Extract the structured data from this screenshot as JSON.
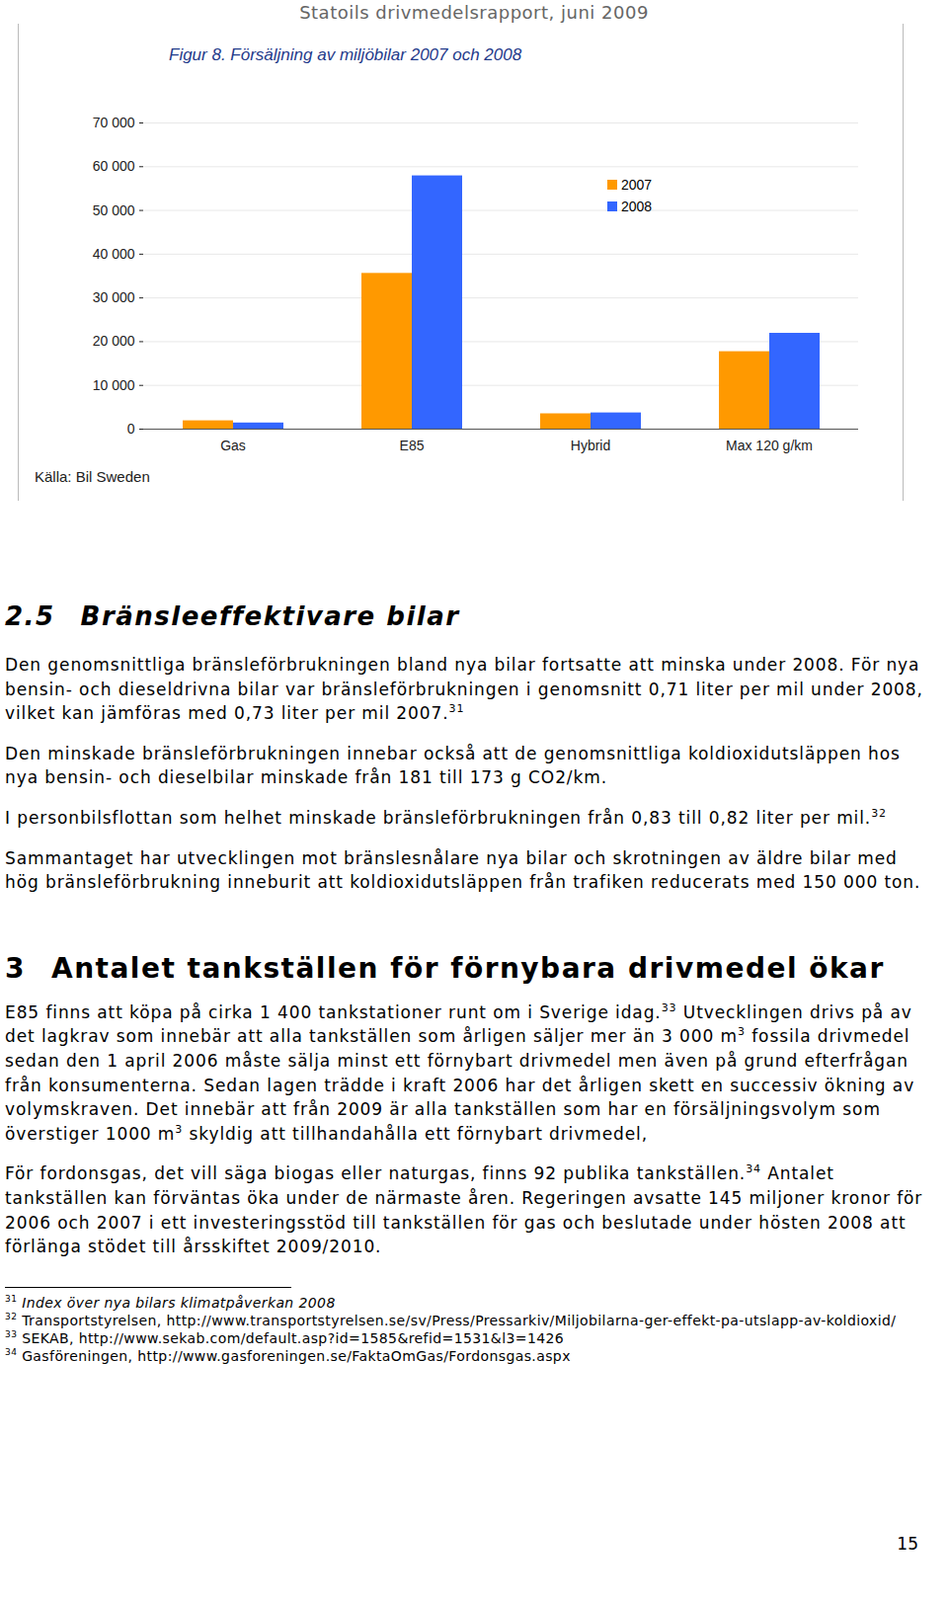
{
  "header": "Statoils drivmedelsrapport, juni 2009",
  "chart_data": {
    "type": "bar",
    "title": "Figur 8. Försäljning av miljöbilar 2007 och 2008",
    "source": "Källa: Bil Sweden",
    "categories": [
      "Gas",
      "E85",
      "Hybrid",
      "Max 120 g/km"
    ],
    "series": [
      {
        "name": "2007",
        "color": "#ff9900",
        "values": [
          1900,
          35600,
          3500,
          17700
        ]
      },
      {
        "name": "2008",
        "color": "#3366ff",
        "values": [
          1400,
          57900,
          3700,
          21900
        ]
      }
    ],
    "ylim": [
      0,
      70000
    ],
    "yticks": [
      0,
      {
        "value": 10000,
        "label": "10 000"
      },
      {
        "value": 20000,
        "label": "20 000"
      },
      {
        "value": 30000,
        "label": "30 000"
      },
      {
        "value": 40000,
        "label": "40 000"
      },
      {
        "value": 50000,
        "label": "50 000"
      },
      {
        "value": 60000,
        "label": "60 000"
      },
      {
        "value": 70000,
        "label": "70 000"
      }
    ],
    "grid": true,
    "legend": "top-right"
  },
  "sections": [
    {
      "number": "2.5",
      "title": "Bränsleeffektivare bilar",
      "paragraphs": [
        [
          "Den genomsnittliga bränsleförbrukningen bland nya bilar fortsatte att minska under 2008. För nya bensin- och dieseldrivna bilar var bränsleförbrukningen i genomsnitt 0,71 liter per mil under 2008, vilket kan jämföras med 0,73 liter per mil 2007.",
          {
            "sup": "31"
          }
        ],
        [
          "Den minskade bränsleförbrukningen innebar också att de genomsnittliga koldioxidutsläppen hos nya bensin- och dieselbilar minskade från 181 till 173 g CO2/km."
        ],
        [
          "I personbilsflottan som helhet minskade bränsleförbrukningen från 0,83 till 0,82 liter per mil.",
          {
            "sup": "32"
          }
        ],
        [
          "Sammantaget har utvecklingen mot bränslesnålare nya bilar och skrotningen av äldre bilar med hög bränsleförbrukning inneburit att koldioxidutsläppen från trafiken reducerats med 150 000 ton."
        ]
      ]
    },
    {
      "number": "3",
      "title": "Antalet tankställen för förnybara drivmedel ökar",
      "paragraphs": [
        [
          "E85 finns att köpa på cirka 1 400 tankstationer runt om i Sverige idag.",
          {
            "sup": "33"
          },
          " Utvecklingen drivs på av det lagkrav som innebär att alla tankställen som årligen säljer mer än 3 000 m",
          {
            "sup": "3"
          },
          " fossila drivmedel sedan den 1 april 2006 måste sälja minst ett förnybart drivmedel men även på grund efterfrågan från konsumenterna. Sedan lagen trädde i kraft 2006 har det årligen skett en successiv ökning av volymskraven. Det innebär att från 2009 är alla tankställen som har en försäljningsvolym som överstiger 1000 m",
          {
            "sup": "3"
          },
          " skyldig att tillhandahålla ett förnybart drivmedel,"
        ],
        [
          "För fordonsgas, det vill säga biogas eller naturgas, finns 92 publika tankställen.",
          {
            "sup": "34"
          },
          " Antalet tankställen kan förväntas öka under de närmaste åren. Regeringen avsatte 145 miljoner kronor för 2006 och 2007 i ett investeringsstöd till tankställen för gas och beslutade under hösten 2008 att förlänga stödet till årsskiftet 2009/2010."
        ]
      ]
    }
  ],
  "footnotes": [
    {
      "number": "31",
      "text": "Index över nya bilars klimatpåverkan 2008"
    },
    {
      "number": "32",
      "text": "Transportstyrelsen, http://www.transportstyrelsen.se/sv/Press/Pressarkiv/Miljobilarna-ger-effekt-pa-utslapp-av-koldioxid/"
    },
    {
      "number": "33",
      "text": "SEKAB, http://www.sekab.com/default.asp?id=1585&refid=1531&l3=1426"
    },
    {
      "number": "34",
      "text": "Gasföreningen, http://www.gasforeningen.se/FaktaOmGas/Fordonsgas.aspx"
    }
  ],
  "page_number": "15"
}
